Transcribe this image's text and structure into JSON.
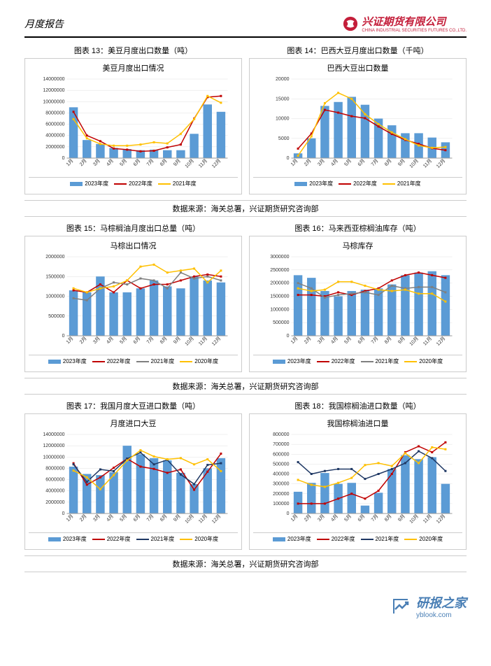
{
  "header": {
    "title": "月度报告",
    "company_cn": "兴证期货有限公司",
    "company_en": "CHINA INDUSTRIAL SECURITIES FUTURES CO.,LTD."
  },
  "colors": {
    "bar": "#5b9bd5",
    "line_red": "#c00000",
    "line_gray": "#7f7f7f",
    "line_yellow": "#ffc000",
    "line_navy": "#1f3864",
    "grid": "#e0e0e0",
    "axis": "#999999",
    "logo_red": "#c41e3a"
  },
  "months": [
    "1月",
    "2月",
    "3月",
    "4月",
    "5月",
    "6月",
    "7月",
    "8月",
    "9月",
    "10月",
    "11月",
    "12月"
  ],
  "charts": {
    "c13": {
      "label": "图表 13：美豆月度出口数量（吨）",
      "title": "美豆月度出口情况",
      "type": "bar+line",
      "ylim": [
        0,
        14000000
      ],
      "ystep": 2000000,
      "bars_2023": [
        9000000,
        3200000,
        2500000,
        1800000,
        1600000,
        1400000,
        1500000,
        1400000,
        1400000,
        4300000,
        9500000,
        8200000
      ],
      "l2022": [
        8200000,
        4000000,
        3000000,
        1700000,
        1500000,
        1200000,
        1300000,
        1900000,
        2400000,
        7000000,
        10800000,
        11000000
      ],
      "l2021": [
        6900000,
        3500000,
        2500000,
        2200000,
        2200000,
        2400000,
        2800000,
        2600000,
        4300000,
        6900000,
        11000000,
        9800000
      ],
      "ytick_labels": [
        "0",
        "2000000",
        "4000000",
        "6000000",
        "8000000",
        "10000000",
        "12000000",
        "14000000"
      ],
      "legend": [
        {
          "t": "bar",
          "c": "#5b9bd5",
          "l": "2023年度"
        },
        {
          "t": "line",
          "c": "#c00000",
          "l": "2022年度"
        },
        {
          "t": "line",
          "c": "#ffc000",
          "l": "2021年度"
        }
      ]
    },
    "c14": {
      "label": "图表 14：巴西大豆月度出口数量（千吨）",
      "title": "巴西大豆出口数量",
      "type": "bar+line",
      "ylim": [
        0,
        20000
      ],
      "ystep": 5000,
      "bars_2023": [
        1200000,
        5000000,
        13200000,
        14200000,
        15500000,
        13500000,
        10000000,
        8300000,
        6300000,
        6300000,
        5200000,
        4000000
      ],
      "b_scale": 17.25,
      "vals_2023": [
        1200,
        5000,
        13200,
        14200,
        15500,
        13500,
        10000,
        8300,
        6300,
        6300,
        5200,
        4000
      ],
      "l2022": [
        2400,
        6200,
        12200,
        11500,
        10600,
        10100,
        8000,
        6100,
        4600,
        3600,
        2500,
        2000
      ],
      "l2021": [
        600,
        5500,
        13900,
        16500,
        15000,
        11100,
        8600,
        6500,
        4800,
        3200,
        2600,
        2800
      ],
      "ytick_labels": [
        "0",
        "5000",
        "10000",
        "15000",
        "20000"
      ],
      "legend": [
        {
          "t": "bar",
          "c": "#5b9bd5",
          "l": "2023年度"
        },
        {
          "t": "line",
          "c": "#c00000",
          "l": "2022年度"
        },
        {
          "t": "line",
          "c": "#ffc000",
          "l": "2021年度"
        }
      ]
    },
    "c15": {
      "label": "图表 15：马棕榈油月度出口总量（吨）",
      "title": "马棕出口情况",
      "type": "bar+line",
      "ylim": [
        0,
        2000000
      ],
      "ystep": 500000,
      "bars_2023": [
        1150000,
        1100000,
        1500000,
        1100000,
        1100000,
        1200000,
        1400000,
        1250000,
        1200000,
        1500000,
        1400000,
        1350000
      ],
      "l2022": [
        1150000,
        1100000,
        1300000,
        1100000,
        1400000,
        1200000,
        1300000,
        1300000,
        1400000,
        1500000,
        1550000,
        1500000
      ],
      "l2021": [
        950000,
        900000,
        1200000,
        1350000,
        1300000,
        1450000,
        1400000,
        1200000,
        1600000,
        1450000,
        1500000,
        1400000
      ],
      "l2020": [
        1200000,
        1100000,
        1200000,
        1250000,
        1400000,
        1750000,
        1800000,
        1600000,
        1650000,
        1700000,
        1350000,
        1650000
      ],
      "ytick_labels": [
        "0",
        "500000",
        "1000000",
        "1500000",
        "2000000"
      ],
      "legend": [
        {
          "t": "bar",
          "c": "#5b9bd5",
          "l": "2023年度"
        },
        {
          "t": "line",
          "c": "#c00000",
          "l": "2022年度"
        },
        {
          "t": "line",
          "c": "#7f7f7f",
          "l": "2021年度"
        },
        {
          "t": "line",
          "c": "#ffc000",
          "l": "2020年度"
        }
      ]
    },
    "c16": {
      "label": "图表 16：马来西亚棕榈油库存（吨）",
      "title": "马棕库存",
      "type": "bar+line",
      "ylim": [
        0,
        3000000
      ],
      "ystep": 500000,
      "bars_2023": [
        2300000,
        2200000,
        1700000,
        1500000,
        1700000,
        1750000,
        1800000,
        1950000,
        2300000,
        2400000,
        2450000,
        2300000
      ],
      "l2022": [
        1550000,
        1550000,
        1500000,
        1650000,
        1550000,
        1700000,
        1800000,
        2100000,
        2300000,
        2400000,
        2300000,
        2200000
      ],
      "l2021": [
        2000000,
        1800000,
        1450000,
        1550000,
        1600000,
        1650000,
        1550000,
        1900000,
        1800000,
        1850000,
        1850000,
        1650000
      ],
      "l2020": [
        1800000,
        1700000,
        1750000,
        2050000,
        2050000,
        1900000,
        1750000,
        1700000,
        1750000,
        1600000,
        1600000,
        1300000
      ],
      "ytick_labels": [
        "0",
        "500000",
        "1000000",
        "1500000",
        "2000000",
        "2500000",
        "3000000"
      ],
      "legend": [
        {
          "t": "bar",
          "c": "#5b9bd5",
          "l": "2023年度"
        },
        {
          "t": "line",
          "c": "#c00000",
          "l": "2022年度"
        },
        {
          "t": "line",
          "c": "#7f7f7f",
          "l": "2021年度"
        },
        {
          "t": "line",
          "c": "#ffc000",
          "l": "2020年度"
        }
      ]
    },
    "c17": {
      "label": "图表 17：我国月度大豆进口数量（吨）",
      "title": "月度进口大豆",
      "type": "bar+line",
      "ylim": [
        0,
        14000000
      ],
      "ystep": 2000000,
      "bars_2023": [
        8300000,
        7000000,
        6800000,
        7300000,
        12000000,
        10500000,
        9800000,
        9400000,
        7200000,
        5200000,
        8000000,
        9800000
      ],
      "l2022": [
        8900000,
        5100000,
        6400000,
        8100000,
        9700000,
        8300000,
        7900000,
        7200000,
        7800000,
        4200000,
        7400000,
        10600000
      ],
      "l2021": [
        8700000,
        5600000,
        7800000,
        7500000,
        9700000,
        10800000,
        8700000,
        9500000,
        6900000,
        5200000,
        8600000,
        8900000
      ],
      "l2020": [
        7600000,
        6400000,
        4300000,
        6800000,
        9400000,
        11200000,
        10100000,
        9600000,
        9800000,
        8700000,
        9600000,
        7500000
      ],
      "ytick_labels": [
        "0",
        "2000000",
        "4000000",
        "6000000",
        "8000000",
        "10000000",
        "12000000",
        "14000000"
      ],
      "legend": [
        {
          "t": "bar",
          "c": "#5b9bd5",
          "l": "2023年度"
        },
        {
          "t": "line",
          "c": "#c00000",
          "l": "2022年度"
        },
        {
          "t": "line",
          "c": "#1f3864",
          "l": "2021年度"
        },
        {
          "t": "line",
          "c": "#ffc000",
          "l": "2020年度"
        }
      ]
    },
    "c18": {
      "label": "图表 18：我国棕榈油进口数量（吨）",
      "title": "我国棕榈油进口量",
      "type": "bar+line",
      "ylim": [
        0,
        800000
      ],
      "ystep": 100000,
      "bars_2023": [
        220000,
        310000,
        410000,
        300000,
        310000,
        80000,
        210000,
        450000,
        590000,
        550000,
        570000,
        300000
      ],
      "l2022": [
        100000,
        100000,
        100000,
        150000,
        200000,
        150000,
        230000,
        400000,
        620000,
        680000,
        620000,
        720000
      ],
      "l2021": [
        520000,
        400000,
        430000,
        450000,
        450000,
        350000,
        400000,
        450000,
        510000,
        630000,
        560000,
        430000
      ],
      "l2020": [
        340000,
        290000,
        270000,
        310000,
        360000,
        490000,
        510000,
        480000,
        610000,
        510000,
        670000,
        650000
      ],
      "ytick_labels": [
        "0",
        "100000",
        "200000",
        "300000",
        "400000",
        "500000",
        "600000",
        "700000",
        "800000"
      ],
      "legend": [
        {
          "t": "bar",
          "c": "#5b9bd5",
          "l": "2023年度"
        },
        {
          "t": "line",
          "c": "#c00000",
          "l": "2022年度"
        },
        {
          "t": "line",
          "c": "#1f3864",
          "l": "2021年度"
        },
        {
          "t": "line",
          "c": "#ffc000",
          "l": "2020年度"
        }
      ]
    }
  },
  "source_text": "数据来源：海关总署，兴证期货研究咨询部",
  "footer": {
    "main": "研报之家",
    "sub": "yblook.com"
  }
}
